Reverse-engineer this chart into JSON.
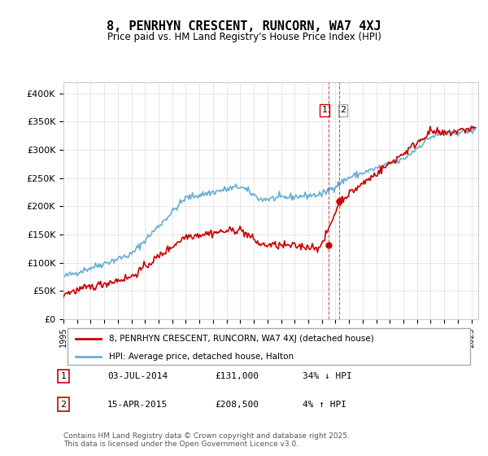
{
  "title": "8, PENRHYN CRESCENT, RUNCORN, WA7 4XJ",
  "subtitle": "Price paid vs. HM Land Registry's House Price Index (HPI)",
  "ylabel_ticks": [
    "£0",
    "£50K",
    "£100K",
    "£150K",
    "£200K",
    "£250K",
    "£300K",
    "£350K",
    "£400K"
  ],
  "ylim": [
    0,
    420000
  ],
  "xlim_start": 1995.0,
  "xlim_end": 2025.5,
  "hpi_color": "#6aaed6",
  "price_color": "#cc0000",
  "transaction1_date": 2014.5,
  "transaction1_price": 131000,
  "transaction1_label": "1",
  "transaction2_date": 2015.25,
  "transaction2_price": 208500,
  "transaction2_label": "2",
  "legend_line1": "8, PENRHYN CRESCENT, RUNCORN, WA7 4XJ (detached house)",
  "legend_line2": "HPI: Average price, detached house, Halton",
  "table_row1": [
    "1",
    "03-JUL-2014",
    "£131,000",
    "34% ↓ HPI"
  ],
  "table_row2": [
    "2",
    "15-APR-2015",
    "£208,500",
    "4% ↑ HPI"
  ],
  "footer": "Contains HM Land Registry data © Crown copyright and database right 2025.\nThis data is licensed under the Open Government Licence v3.0.",
  "background_color": "#ffffff",
  "grid_color": "#dddddd"
}
